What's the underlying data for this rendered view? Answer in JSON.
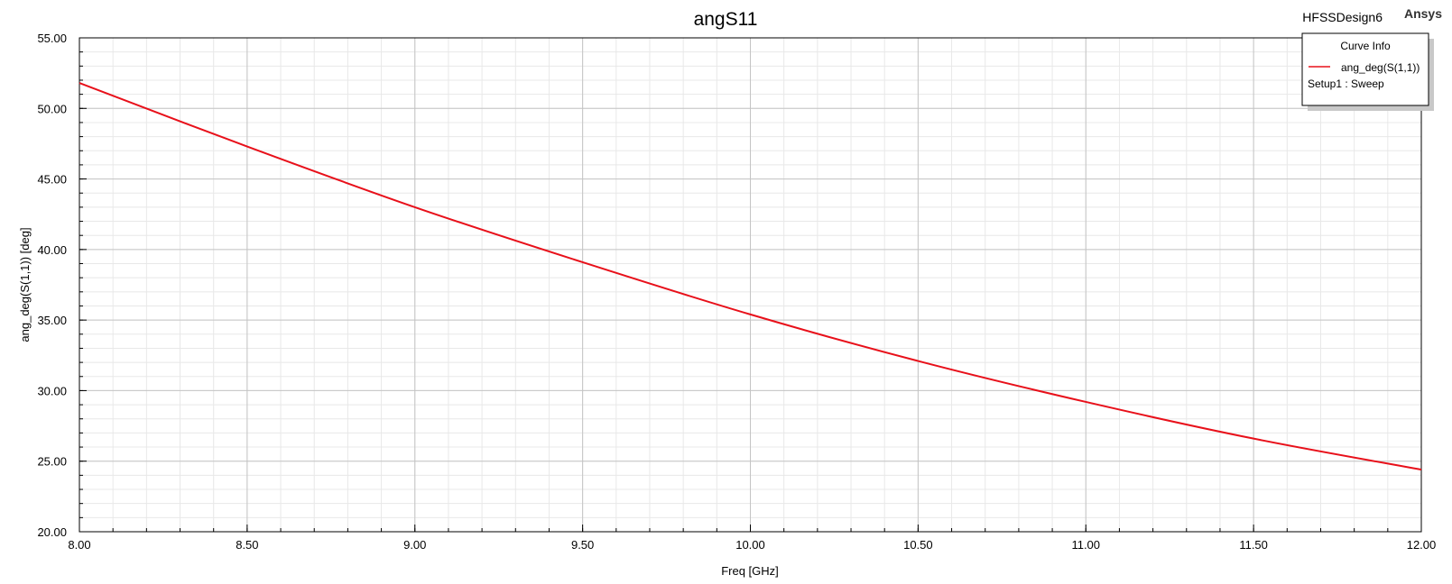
{
  "header": {
    "design_name": "HFSSDesign6",
    "brand": "Ansys"
  },
  "legend": {
    "title": "Curve Info",
    "entries": [
      {
        "label": "ang_deg(S(1,1))",
        "sublabel": "Setup1 : Sweep",
        "color": "#e8101a"
      }
    ]
  },
  "chart_data": {
    "type": "line",
    "title": "angS11",
    "xlabel": "Freq [GHz]",
    "ylabel": "ang_deg(S(1,1)) [deg]",
    "xlim": [
      8.0,
      12.0
    ],
    "ylim": [
      20.0,
      55.0
    ],
    "x_ticks": [
      8.0,
      8.5,
      9.0,
      9.5,
      10.0,
      10.5,
      11.0,
      11.5,
      12.0
    ],
    "x_tick_labels": [
      "8.00",
      "8.50",
      "9.00",
      "9.50",
      "10.00",
      "10.50",
      "11.00",
      "11.50",
      "12.00"
    ],
    "y_ticks": [
      20.0,
      25.0,
      30.0,
      35.0,
      40.0,
      45.0,
      50.0,
      55.0
    ],
    "y_tick_labels": [
      "20.00",
      "25.00",
      "30.00",
      "35.00",
      "40.00",
      "45.00",
      "50.00",
      "55.00"
    ],
    "grid": true,
    "legend_position": "top-right",
    "series": [
      {
        "name": "ang_deg(S(1,1))",
        "color": "#e8101a",
        "x": [
          8.0,
          8.5,
          9.0,
          9.5,
          10.0,
          10.5,
          11.0,
          11.5,
          12.0
        ],
        "y": [
          51.8,
          47.3,
          43.0,
          39.1,
          35.4,
          32.1,
          29.2,
          26.6,
          24.4
        ]
      }
    ]
  }
}
